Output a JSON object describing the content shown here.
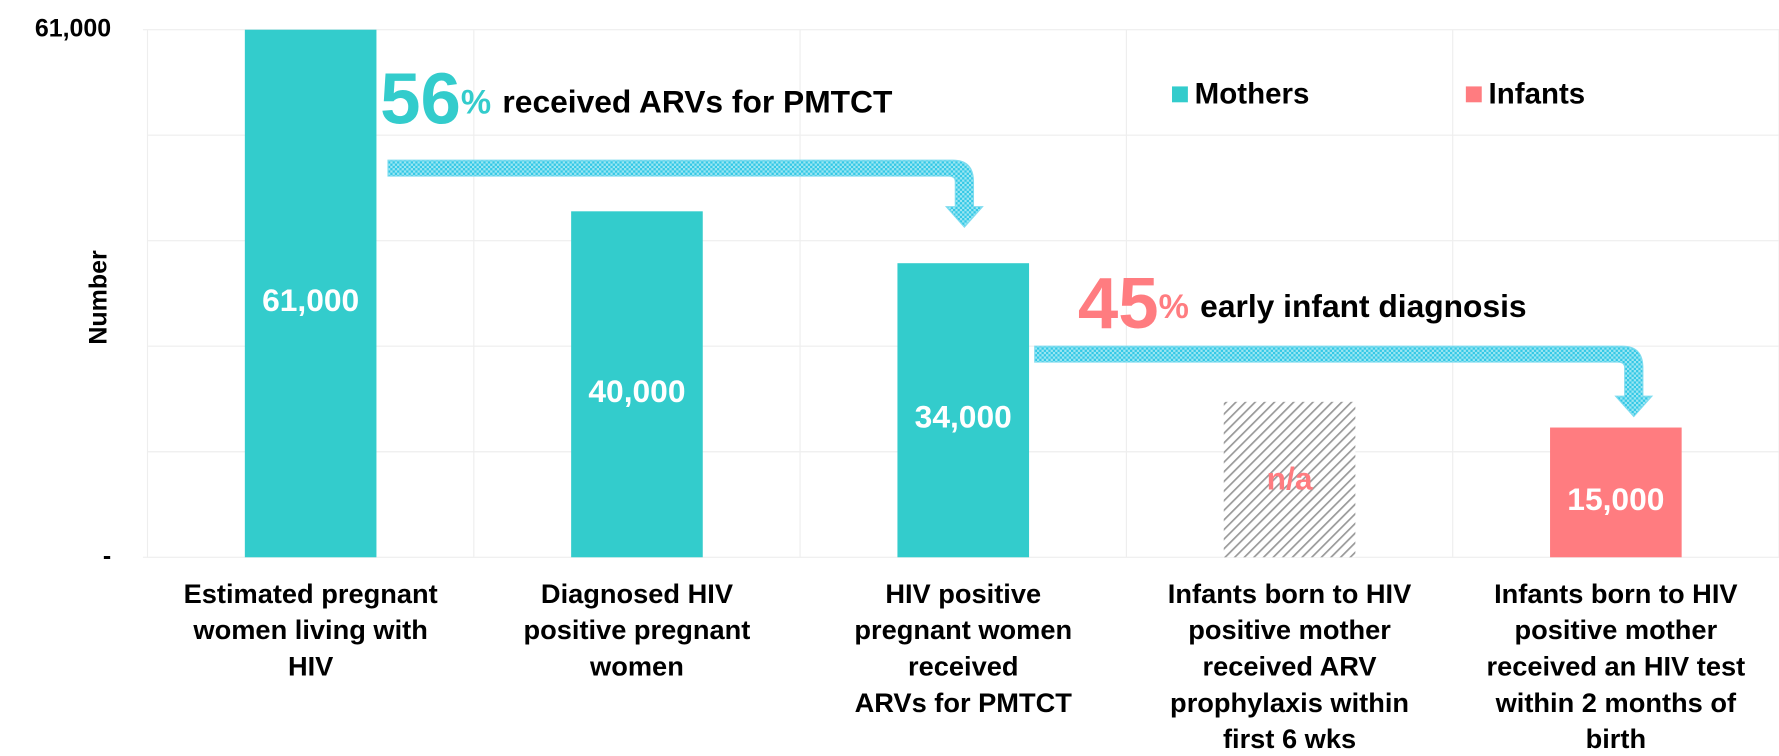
{
  "chart_data": {
    "type": "bar",
    "y_label": "Number",
    "categories": [
      "Estimated pregnant\nwomen living with\nHIV",
      "Diagnosed HIV\npositive pregnant\nwomen",
      "HIV positive\npregnant women\nreceived\nARVs for PMTCT",
      "Infants born to HIV\npositive mother\nreceived ARV\nprophylaxis within\nfirst 6 wks",
      "Infants born to HIV\npositive mother\nreceived an HIV test\nwithin 2 months of\nbirth"
    ],
    "series": [
      {
        "name": "Mothers",
        "color": "#33cccc",
        "values": [
          61000,
          40000,
          34000,
          null,
          null
        ],
        "value_labels": [
          "61,000",
          "40,000",
          "34,000",
          null,
          null
        ]
      },
      {
        "name": "Infants",
        "color": "#ff7c80",
        "values": [
          null,
          null,
          null,
          null,
          15000
        ],
        "value_labels": [
          null,
          null,
          null,
          "n/a",
          "15,000"
        ]
      }
    ],
    "ylim": [
      0,
      61000
    ],
    "yticks": [
      {
        "value": 0,
        "label": "-"
      },
      {
        "value": 61000,
        "label": "61,000"
      }
    ],
    "grid": true,
    "legend": "top-right",
    "annotations": [
      {
        "number": "56",
        "unit": "%",
        "text": "received ARVs for PMTCT",
        "color": "#33cccc"
      },
      {
        "number": "45",
        "unit": "%",
        "text": "early infant diagnosis",
        "color": "#ff7c80"
      }
    ]
  }
}
